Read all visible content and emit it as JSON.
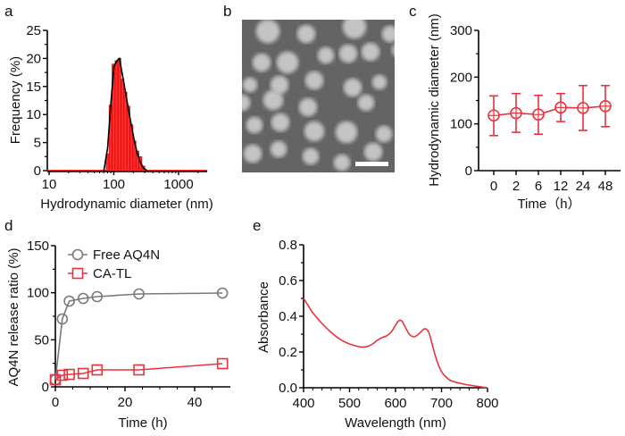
{
  "chart_data": [
    {
      "panel": "a",
      "type": "bar",
      "xlabel": "Hydrodynamic diameter (nm)",
      "ylabel": "Frequency (%)",
      "xscale": "log",
      "xlim": [
        10,
        2000
      ],
      "ylim": [
        0,
        25
      ],
      "xticks": [
        10,
        100,
        1000
      ],
      "xtick_labels": [
        "10",
        "100",
        "1000"
      ],
      "yticks": [
        0,
        5,
        10,
        15,
        20,
        25
      ],
      "ytick_labels": [
        "0",
        "5",
        "10",
        "15",
        "20",
        "25"
      ],
      "bar_color": "#ff2a2a",
      "fit_color": "#000000",
      "bins": [
        {
          "x": 80,
          "value": 3
        },
        {
          "x": 89,
          "value": 11.7
        },
        {
          "x": 99,
          "value": 19
        },
        {
          "x": 110,
          "value": 19.6
        },
        {
          "x": 122,
          "value": 20
        },
        {
          "x": 136,
          "value": 16.3
        },
        {
          "x": 151,
          "value": 14
        },
        {
          "x": 168,
          "value": 11.5
        },
        {
          "x": 187,
          "value": 8.2
        },
        {
          "x": 208,
          "value": 5.3
        },
        {
          "x": 231,
          "value": 3.5
        },
        {
          "x": 257,
          "value": 2.5
        },
        {
          "x": 286,
          "value": 0.8
        }
      ],
      "fit": [
        [
          70,
          0
        ],
        [
          80,
          4
        ],
        [
          90,
          12
        ],
        [
          100,
          18.5
        ],
        [
          112,
          19.6
        ],
        [
          122,
          20
        ],
        [
          136,
          17
        ],
        [
          151,
          14
        ],
        [
          168,
          11
        ],
        [
          187,
          8
        ],
        [
          208,
          5.2
        ],
        [
          231,
          3
        ],
        [
          257,
          1.5
        ],
        [
          290,
          0.4
        ],
        [
          330,
          0
        ]
      ]
    },
    {
      "panel": "b",
      "type": "image",
      "description": "TEM micrograph of nanoparticles with white scale bar"
    },
    {
      "panel": "c",
      "type": "line",
      "xlabel": "Time（h）",
      "ylabel": "Hydrodynamic diameter (nm)",
      "categories": [
        "0",
        "2",
        "6",
        "12",
        "24",
        "48"
      ],
      "ylim": [
        0,
        300
      ],
      "yticks": [
        0,
        100,
        200,
        300
      ],
      "ytick_labels": [
        "0",
        "100",
        "200",
        "300"
      ],
      "color": "#e8323c",
      "series": [
        {
          "name": "Hydrodynamic diameter",
          "values": [
            118,
            123,
            120,
            135,
            134,
            138
          ],
          "err_upper": [
            160,
            165,
            161,
            165,
            182,
            182
          ],
          "err_lower": [
            75,
            82,
            78,
            105,
            86,
            94
          ]
        }
      ]
    },
    {
      "panel": "d",
      "type": "line",
      "xlabel": "Time (h)",
      "ylabel": "AQ4N release ratio (%)",
      "xlim": [
        0,
        50
      ],
      "ylim": [
        0,
        150
      ],
      "xticks": [
        0,
        20,
        40
      ],
      "xtick_labels": [
        "0",
        "20",
        "40"
      ],
      "yticks": [
        0,
        50,
        100,
        150
      ],
      "ytick_labels": [
        "0",
        "50",
        "100",
        "150"
      ],
      "legend": "top-left",
      "series": [
        {
          "name": "Free AQ4N",
          "marker": "circle",
          "color": "#7a7a7a",
          "x": [
            0,
            2,
            4,
            8,
            12,
            24,
            48
          ],
          "values": [
            0,
            68,
            88,
            91,
            93,
            96,
            97
          ]
        },
        {
          "name": "CA-TL",
          "marker": "square",
          "color": "#e8323c",
          "x": [
            0,
            2,
            4,
            8,
            12,
            24,
            48
          ],
          "values": [
            0,
            5,
            6,
            7,
            11,
            11,
            18
          ]
        }
      ]
    },
    {
      "panel": "e",
      "type": "line",
      "xlabel": "Wavelength (nm)",
      "ylabel": "Absorbance",
      "xlim": [
        400,
        800
      ],
      "ylim": [
        0,
        0.8
      ],
      "xticks": [
        400,
        500,
        600,
        700,
        800
      ],
      "xtick_labels": [
        "400",
        "500",
        "600",
        "700",
        "800"
      ],
      "yticks": [
        0,
        0.2,
        0.4,
        0.6,
        0.8
      ],
      "ytick_labels": [
        "0.0",
        "0.2",
        "0.4",
        "0.6",
        "0.8"
      ],
      "color": "#e8323c",
      "series": [
        {
          "name": "Absorbance",
          "x": [
            400,
            410,
            420,
            440,
            460,
            480,
            500,
            520,
            530,
            540,
            550,
            560,
            570,
            580,
            590,
            600,
            605,
            610,
            615,
            620,
            630,
            640,
            650,
            660,
            665,
            670,
            675,
            680,
            690,
            700,
            710,
            720,
            740,
            760,
            780,
            800
          ],
          "values": [
            0.5,
            0.46,
            0.42,
            0.36,
            0.31,
            0.27,
            0.245,
            0.23,
            0.228,
            0.232,
            0.245,
            0.265,
            0.28,
            0.29,
            0.31,
            0.35,
            0.37,
            0.378,
            0.37,
            0.345,
            0.3,
            0.285,
            0.3,
            0.325,
            0.33,
            0.32,
            0.29,
            0.24,
            0.15,
            0.09,
            0.06,
            0.04,
            0.025,
            0.015,
            0.007,
            0.0
          ]
        }
      ]
    }
  ],
  "panel_labels": [
    "a",
    "b",
    "c",
    "d",
    "e"
  ]
}
